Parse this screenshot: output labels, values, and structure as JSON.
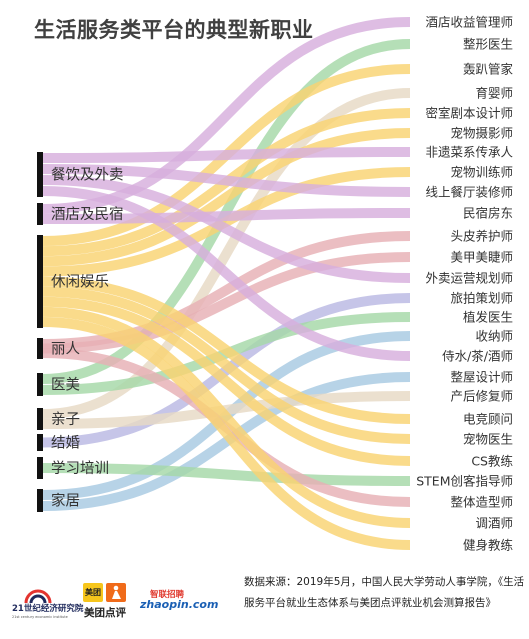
{
  "title": "生活服务类平台的典型新职业",
  "colors": {
    "green": "#a5d8a7",
    "purple": "#d7aedd",
    "yellow": "#f9d371",
    "rose": "#e7b0b5",
    "blue": "#a7c9e2",
    "tan": "#e6d9c4",
    "lavender": "#b9b8e3",
    "bar": "#111111"
  },
  "sources": [
    {
      "label": "餐饮及外卖"
    },
    {
      "label": "酒店及民宿"
    },
    {
      "label": "休闲娱乐"
    },
    {
      "label": "丽人"
    },
    {
      "label": "医美"
    },
    {
      "label": "亲子"
    },
    {
      "label": "结婚"
    },
    {
      "label": "学习培训"
    },
    {
      "label": "家居"
    }
  ],
  "targets": [
    {
      "label": "酒店收益管理师"
    },
    {
      "label": "整形医生"
    },
    {
      "label": "轰趴管家"
    },
    {
      "label": "育婴师"
    },
    {
      "label": "密室剧本设计师"
    },
    {
      "label": "宠物摄影师"
    },
    {
      "label": "非遗菜系传承人"
    },
    {
      "label": "宠物训练师"
    },
    {
      "label": "线上餐厅装修师"
    },
    {
      "label": "民宿房东"
    },
    {
      "label": "头皮养护师"
    },
    {
      "label": "美甲美睫师"
    },
    {
      "label": "外卖运营规划师"
    },
    {
      "label": "旅拍策划师"
    },
    {
      "label": "植发医生"
    },
    {
      "label": "收纳师"
    },
    {
      "label": "侍水/茶/酒师"
    },
    {
      "label": "整屋设计师"
    },
    {
      "label": "产后修复师"
    },
    {
      "label": "电竞顾问"
    },
    {
      "label": "宠物医生"
    },
    {
      "label": "CS教练"
    },
    {
      "label": "STEM创客指导师"
    },
    {
      "label": "整体造型师"
    },
    {
      "label": "调酒师"
    },
    {
      "label": "健身教练"
    }
  ],
  "flows": [
    {
      "source": 1,
      "target": 0,
      "color": "purple"
    },
    {
      "source": 4,
      "target": 1,
      "color": "green"
    },
    {
      "source": 2,
      "target": 2,
      "color": "yellow"
    },
    {
      "source": 5,
      "target": 3,
      "color": "tan"
    },
    {
      "source": 2,
      "target": 4,
      "color": "yellow"
    },
    {
      "source": 2,
      "target": 5,
      "color": "yellow"
    },
    {
      "source": 0,
      "target": 6,
      "color": "purple"
    },
    {
      "source": 2,
      "target": 7,
      "color": "yellow"
    },
    {
      "source": 0,
      "target": 8,
      "color": "purple"
    },
    {
      "source": 1,
      "target": 9,
      "color": "purple"
    },
    {
      "source": 3,
      "target": 10,
      "color": "rose"
    },
    {
      "source": 3,
      "target": 11,
      "color": "rose"
    },
    {
      "source": 0,
      "target": 12,
      "color": "purple"
    },
    {
      "source": 6,
      "target": 13,
      "color": "lavender"
    },
    {
      "source": 4,
      "target": 14,
      "color": "green"
    },
    {
      "source": 8,
      "target": 15,
      "color": "blue"
    },
    {
      "source": 0,
      "target": 16,
      "color": "purple"
    },
    {
      "source": 8,
      "target": 17,
      "color": "blue"
    },
    {
      "source": 5,
      "target": 18,
      "color": "tan"
    },
    {
      "source": 2,
      "target": 19,
      "color": "yellow"
    },
    {
      "source": 2,
      "target": 20,
      "color": "yellow"
    },
    {
      "source": 2,
      "target": 21,
      "color": "yellow"
    },
    {
      "source": 7,
      "target": 22,
      "color": "green"
    },
    {
      "source": 3,
      "target": 23,
      "color": "rose"
    },
    {
      "source": 2,
      "target": 24,
      "color": "yellow"
    },
    {
      "source": 2,
      "target": 25,
      "color": "yellow"
    }
  ],
  "footer": {
    "source_text": "数据来源：2019年5月，中国人民大学劳动人事学院，《生活服务平台就业生态体系与美团点评就业机会测算报告》"
  },
  "logos": {
    "logo1_name": "21世纪经济研究院",
    "logo1_sub": "21st century economic institute",
    "logo2_badge": "美团",
    "logo2_name": "美团点评",
    "logo3_cn": "智联招聘",
    "logo3_en": "zhaopin.com"
  }
}
